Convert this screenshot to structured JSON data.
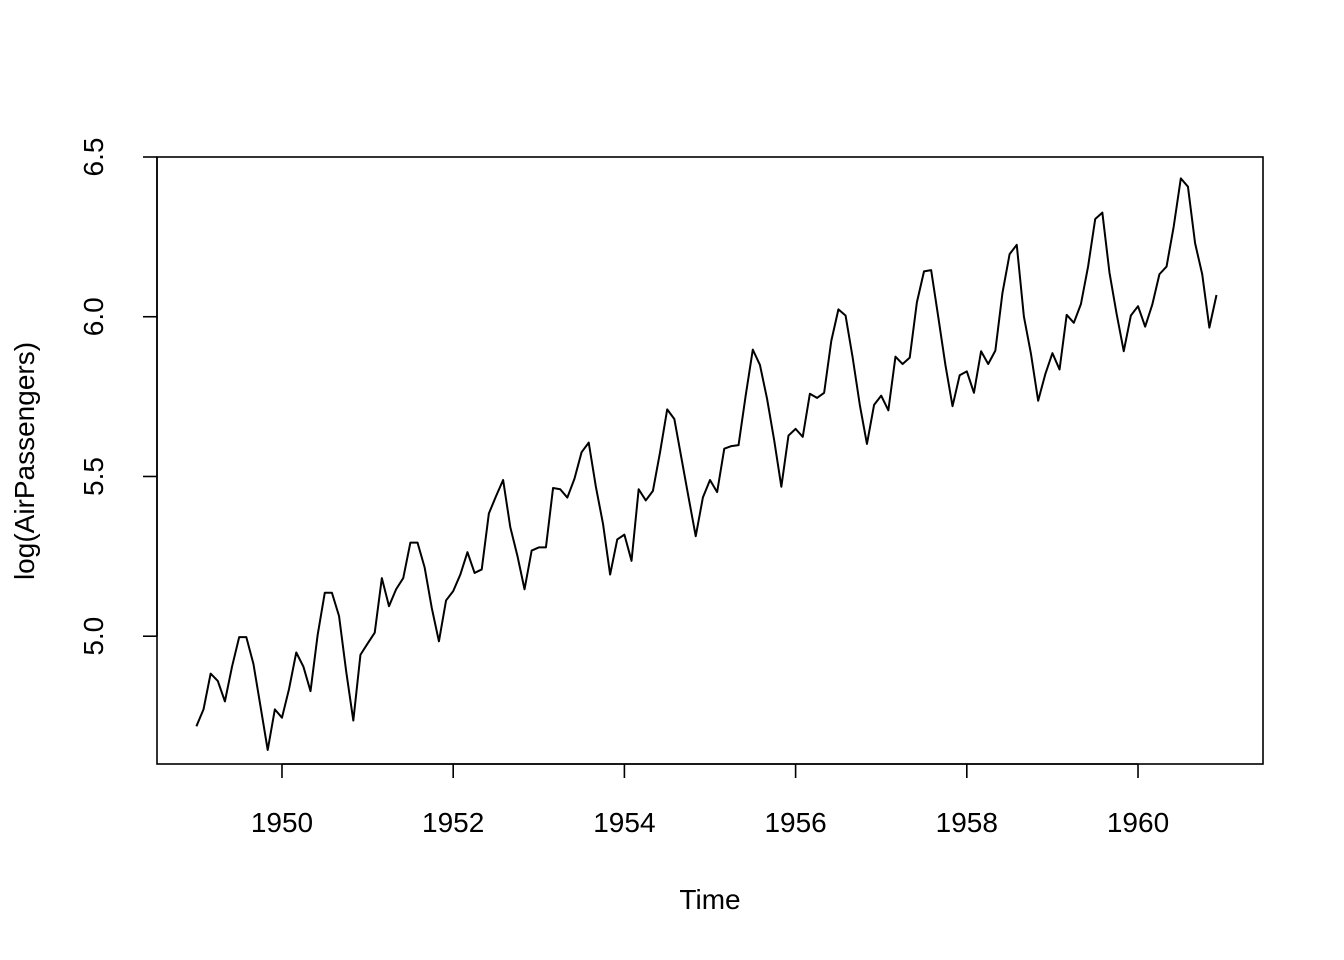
{
  "chart_data": {
    "type": "line",
    "title": "",
    "xlabel": "Time",
    "ylabel": "log(AirPassengers)",
    "xlim": [
      1948.54,
      1961.46
    ],
    "ylim": [
      4.6,
      6.5
    ],
    "x_ticks": [
      1950,
      1952,
      1954,
      1956,
      1958,
      1960
    ],
    "x_tick_labels": [
      "1950",
      "1952",
      "1954",
      "1956",
      "1958",
      "1960"
    ],
    "y_ticks": [
      5.0,
      5.5,
      6.0,
      6.5
    ],
    "y_tick_labels": [
      "5.0",
      "5.5",
      "6.0",
      "6.5"
    ],
    "grid": false,
    "line_color": "#000000",
    "series": [
      {
        "x_start": 1949.0,
        "x_step": 0.08333333,
        "values": [
          4.718,
          4.771,
          4.883,
          4.86,
          4.796,
          4.905,
          4.997,
          4.997,
          4.913,
          4.779,
          4.644,
          4.771,
          4.745,
          4.836,
          4.949,
          4.905,
          4.828,
          5.004,
          5.136,
          5.136,
          5.063,
          4.89,
          4.736,
          4.942,
          4.977,
          5.011,
          5.182,
          5.094,
          5.147,
          5.182,
          5.293,
          5.293,
          5.215,
          5.088,
          4.984,
          5.112,
          5.141,
          5.193,
          5.263,
          5.198,
          5.209,
          5.384,
          5.438,
          5.489,
          5.342,
          5.252,
          5.147,
          5.268,
          5.278,
          5.278,
          5.464,
          5.46,
          5.434,
          5.493,
          5.576,
          5.606,
          5.468,
          5.352,
          5.193,
          5.303,
          5.318,
          5.236,
          5.46,
          5.425,
          5.455,
          5.576,
          5.71,
          5.68,
          5.557,
          5.434,
          5.313,
          5.434,
          5.489,
          5.451,
          5.587,
          5.595,
          5.598,
          5.753,
          5.897,
          5.849,
          5.743,
          5.613,
          5.468,
          5.628,
          5.649,
          5.624,
          5.759,
          5.746,
          5.762,
          5.924,
          6.023,
          6.004,
          5.872,
          5.724,
          5.602,
          5.724,
          5.753,
          5.707,
          5.875,
          5.852,
          5.872,
          6.045,
          6.142,
          6.146,
          5.999,
          5.849,
          5.72,
          5.817,
          5.829,
          5.762,
          5.892,
          5.852,
          5.894,
          6.075,
          6.196,
          6.225,
          6.001,
          5.883,
          5.737,
          5.82,
          5.886,
          5.835,
          6.006,
          5.981,
          6.04,
          6.157,
          6.306,
          6.326,
          6.138,
          6.009,
          5.892,
          6.004,
          6.033,
          5.969,
          6.038,
          6.133,
          6.157,
          6.282,
          6.433,
          6.407,
          6.23,
          6.133,
          5.966,
          6.068
        ]
      }
    ]
  }
}
